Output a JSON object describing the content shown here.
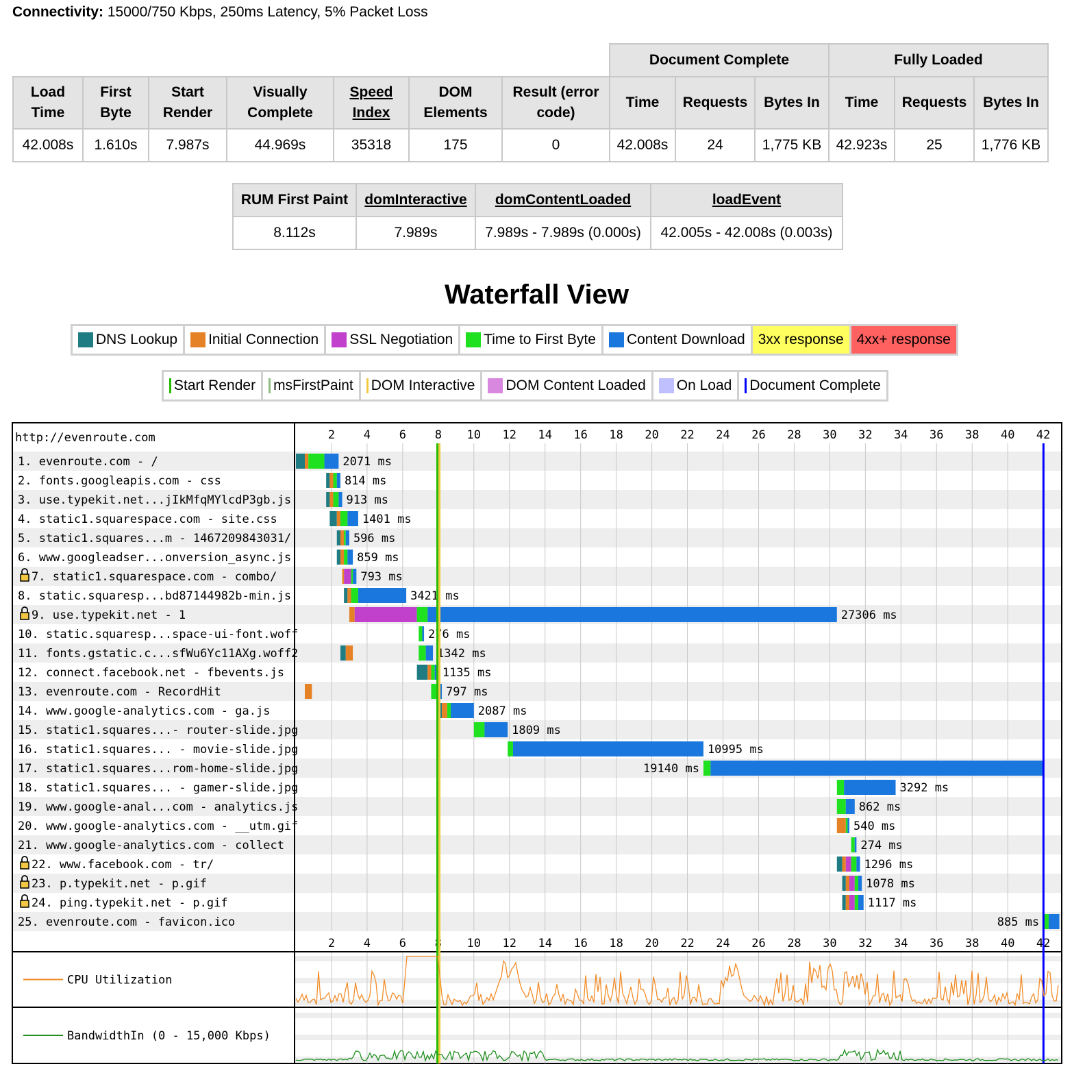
{
  "connectivity": {
    "label": "Connectivity:",
    "value": "15000/750 Kbps, 250ms Latency, 5% Packet Loss"
  },
  "results": {
    "group_headers": {
      "document_complete": "Document Complete",
      "fully_loaded": "Fully Loaded"
    },
    "headers": [
      "Load Time",
      "First Byte",
      "Start Render",
      "Visually Complete",
      "Speed Index",
      "DOM Elements",
      "Result (error code)",
      "Time",
      "Requests",
      "Bytes In",
      "Time",
      "Requests",
      "Bytes In"
    ],
    "values": [
      "42.008s",
      "1.610s",
      "7.987s",
      "44.969s",
      "35318",
      "175",
      "0",
      "42.008s",
      "24",
      "1,775 KB",
      "42.923s",
      "25",
      "1,776 KB"
    ]
  },
  "rum": {
    "headers": [
      "RUM First Paint",
      "domInteractive",
      "domContentLoaded",
      "loadEvent"
    ],
    "values": [
      "8.112s",
      "7.989s",
      "7.989s - 7.989s (0.000s)",
      "42.005s - 42.008s (0.003s)"
    ]
  },
  "waterfall_title": "Waterfall View",
  "legend_phases": [
    {
      "label": "DNS Lookup",
      "color": "#1f7c83"
    },
    {
      "label": "Initial Connection",
      "color": "#e58226"
    },
    {
      "label": "SSL Negotiation",
      "color": "#c141cd"
    },
    {
      "label": "Time to First Byte",
      "color": "#1fe11f"
    },
    {
      "label": "Content Download",
      "color": "#1977dd"
    },
    {
      "label": "3xx response",
      "color": "#ffff60"
    },
    {
      "label": "4xx+ response",
      "color": "#ff6060"
    }
  ],
  "legend_events": [
    {
      "label": "Start Render",
      "color": "#28bc00",
      "kind": "line"
    },
    {
      "label": "msFirstPaint",
      "color": "#8fbc83",
      "kind": "line"
    },
    {
      "label": "DOM Interactive",
      "color": "#f2c744",
      "kind": "line"
    },
    {
      "label": "DOM Content Loaded",
      "color": "#d888df",
      "kind": "box"
    },
    {
      "label": "On Load",
      "color": "#c0c0ff",
      "kind": "box"
    },
    {
      "label": "Document Complete",
      "color": "#0000ff",
      "kind": "line"
    }
  ],
  "waterfall": {
    "page_url": "http://evenroute.com",
    "axis_ticks": [
      2,
      4,
      6,
      8,
      10,
      12,
      14,
      16,
      18,
      20,
      22,
      24,
      26,
      28,
      30,
      32,
      34,
      36,
      38,
      40,
      42
    ],
    "markers": {
      "start_render": 7.987,
      "dom_interactive": 7.989,
      "document_complete": 42.008
    },
    "requests": [
      {
        "label": " 1. evenroute.com - /",
        "secure": false,
        "duration": "2071 ms",
        "phases": [
          [
            0.0,
            0.5,
            "dns"
          ],
          [
            0.5,
            0.7,
            "conn"
          ],
          [
            0.7,
            1.6,
            "ttfb"
          ],
          [
            1.6,
            2.4,
            "dl"
          ]
        ]
      },
      {
        "label": " 2. fonts.googleapis.com - css",
        "secure": false,
        "duration": "814 ms",
        "phases": [
          [
            1.7,
            1.9,
            "dns"
          ],
          [
            1.9,
            2.1,
            "conn"
          ],
          [
            2.1,
            2.3,
            "ttfb"
          ],
          [
            2.3,
            2.5,
            "dl"
          ]
        ]
      },
      {
        "label": " 3. use.typekit.net...jIkMfqMYlcdP3gb.js",
        "secure": false,
        "duration": "913 ms",
        "phases": [
          [
            1.7,
            1.9,
            "dns"
          ],
          [
            1.9,
            2.1,
            "conn"
          ],
          [
            2.1,
            2.4,
            "ttfb"
          ],
          [
            2.4,
            2.6,
            "dl"
          ]
        ]
      },
      {
        "label": " 4. static1.squarespace.com - site.css",
        "secure": false,
        "duration": "1401 ms",
        "phases": [
          [
            1.9,
            2.3,
            "dns"
          ],
          [
            2.3,
            2.5,
            "conn"
          ],
          [
            2.5,
            2.9,
            "ttfb"
          ],
          [
            2.9,
            3.5,
            "dl"
          ]
        ]
      },
      {
        "label": " 5. static1.squares...m - 1467209843031/",
        "secure": false,
        "duration": "596 ms",
        "phases": [
          [
            2.3,
            2.5,
            "dns"
          ],
          [
            2.5,
            2.7,
            "conn"
          ],
          [
            2.7,
            2.8,
            "ttfb"
          ],
          [
            2.8,
            3.0,
            "dl"
          ]
        ]
      },
      {
        "label": " 6. www.googleadser...onversion_async.js",
        "secure": false,
        "duration": "859 ms",
        "phases": [
          [
            2.3,
            2.5,
            "dns"
          ],
          [
            2.5,
            2.7,
            "conn"
          ],
          [
            2.7,
            2.9,
            "ttfb"
          ],
          [
            2.9,
            3.2,
            "dl"
          ]
        ]
      },
      {
        "label": " 7. static1.squarespace.com - combo/",
        "secure": true,
        "duration": "793 ms",
        "phases": [
          [
            2.6,
            2.7,
            "conn"
          ],
          [
            2.7,
            3.1,
            "ssl"
          ],
          [
            3.1,
            3.2,
            "ttfb"
          ],
          [
            3.2,
            3.4,
            "dl"
          ]
        ]
      },
      {
        "label": " 8. static.squaresp...bd87144982b-min.js",
        "secure": false,
        "duration": "3421 ms",
        "phases": [
          [
            2.7,
            2.9,
            "dns"
          ],
          [
            2.9,
            3.1,
            "conn"
          ],
          [
            3.1,
            3.5,
            "ttfb"
          ],
          [
            3.5,
            6.2,
            "dl"
          ]
        ]
      },
      {
        "label": " 9. use.typekit.net - 1",
        "secure": true,
        "duration": "27306 ms",
        "phases": [
          [
            3.0,
            3.3,
            "conn"
          ],
          [
            3.3,
            6.8,
            "ssl"
          ],
          [
            6.8,
            7.4,
            "ttfb"
          ],
          [
            7.4,
            30.4,
            "dl"
          ]
        ]
      },
      {
        "label": "10. static.squaresp...space-ui-font.woff",
        "secure": false,
        "duration": "276 ms",
        "phases": [
          [
            6.9,
            7.1,
            "ttfb"
          ],
          [
            7.1,
            7.2,
            "dl"
          ]
        ]
      },
      {
        "label": "11. fonts.gstatic.c...sfWu6Yc11AXg.woff2",
        "secure": false,
        "duration": "1342 ms",
        "phases": [
          [
            2.5,
            2.8,
            "dns"
          ],
          [
            2.8,
            3.2,
            "conn"
          ],
          [
            6.9,
            7.3,
            "ttfb"
          ],
          [
            7.3,
            7.7,
            "dl"
          ]
        ]
      },
      {
        "label": "12. connect.facebook.net - fbevents.js",
        "secure": false,
        "duration": "1135 ms",
        "phases": [
          [
            6.8,
            7.4,
            "dns"
          ],
          [
            7.4,
            7.6,
            "conn"
          ],
          [
            7.6,
            7.8,
            "ttfb"
          ],
          [
            7.8,
            8.0,
            "dl"
          ]
        ]
      },
      {
        "label": "13. evenroute.com - RecordHit",
        "secure": false,
        "duration": "797 ms",
        "phases": [
          [
            0.5,
            0.9,
            "conn"
          ],
          [
            7.6,
            8.0,
            "ttfb"
          ],
          [
            8.0,
            8.2,
            "dl"
          ]
        ]
      },
      {
        "label": "14. www.google-analytics.com - ga.js",
        "secure": false,
        "duration": "2087 ms",
        "phases": [
          [
            7.9,
            8.2,
            "dns"
          ],
          [
            8.2,
            8.5,
            "conn"
          ],
          [
            8.5,
            8.7,
            "ttfb"
          ],
          [
            8.7,
            10.0,
            "dl"
          ]
        ]
      },
      {
        "label": "15. static1.squares...- router-slide.jpg",
        "secure": false,
        "duration": "1809 ms",
        "phases": [
          [
            10.0,
            10.6,
            "ttfb"
          ],
          [
            10.6,
            11.9,
            "dl"
          ]
        ]
      },
      {
        "label": "16. static1.squares... - movie-slide.jpg",
        "secure": false,
        "duration": "10995 ms",
        "phases": [
          [
            11.9,
            12.2,
            "ttfb"
          ],
          [
            12.2,
            22.9,
            "dl"
          ]
        ]
      },
      {
        "label": "17. static1.squares...rom-home-slide.jpg",
        "secure": false,
        "duration": "19140 ms",
        "label_left": true,
        "phases": [
          [
            22.9,
            23.3,
            "ttfb"
          ],
          [
            23.3,
            42.0,
            "dl"
          ]
        ]
      },
      {
        "label": "18. static1.squares... - gamer-slide.jpg",
        "secure": false,
        "duration": "3292 ms",
        "phases": [
          [
            30.4,
            30.8,
            "ttfb"
          ],
          [
            30.8,
            33.7,
            "dl"
          ]
        ]
      },
      {
        "label": "19. www.google-anal...com - analytics.js",
        "secure": false,
        "duration": "862 ms",
        "phases": [
          [
            30.4,
            30.9,
            "ttfb"
          ],
          [
            30.9,
            31.4,
            "dl"
          ]
        ]
      },
      {
        "label": "20. www.google-analytics.com - __utm.gif",
        "secure": false,
        "duration": "540 ms",
        "phases": [
          [
            30.4,
            30.9,
            "conn"
          ],
          [
            30.9,
            31.0,
            "ttfb"
          ],
          [
            31.0,
            31.1,
            "dl"
          ]
        ]
      },
      {
        "label": "21. www.google-analytics.com - collect",
        "secure": false,
        "duration": "274 ms",
        "phases": [
          [
            31.2,
            31.4,
            "ttfb"
          ],
          [
            31.4,
            31.5,
            "dl"
          ]
        ]
      },
      {
        "label": "22. www.facebook.com - tr/",
        "secure": true,
        "duration": "1296 ms",
        "phases": [
          [
            30.4,
            30.7,
            "dns"
          ],
          [
            30.7,
            30.9,
            "conn"
          ],
          [
            30.9,
            31.2,
            "ssl"
          ],
          [
            31.2,
            31.5,
            "ttfb"
          ],
          [
            31.5,
            31.7,
            "dl"
          ]
        ]
      },
      {
        "label": "23. p.typekit.net - p.gif",
        "secure": true,
        "duration": "1078 ms",
        "phases": [
          [
            30.7,
            30.9,
            "dns"
          ],
          [
            30.9,
            31.1,
            "conn"
          ],
          [
            31.1,
            31.4,
            "ssl"
          ],
          [
            31.4,
            31.6,
            "ttfb"
          ],
          [
            31.6,
            31.8,
            "dl"
          ]
        ]
      },
      {
        "label": "24. ping.typekit.net - p.gif",
        "secure": true,
        "duration": "1117 ms",
        "phases": [
          [
            30.7,
            30.9,
            "dns"
          ],
          [
            30.9,
            31.1,
            "conn"
          ],
          [
            31.1,
            31.4,
            "ssl"
          ],
          [
            31.4,
            31.6,
            "ttfb"
          ],
          [
            31.6,
            31.9,
            "dl"
          ]
        ]
      },
      {
        "label": "25. evenroute.com - favicon.ico",
        "secure": false,
        "duration": "885 ms",
        "label_left": true,
        "phases": [
          [
            42.0,
            42.3,
            "ttfb"
          ],
          [
            42.3,
            42.9,
            "dl"
          ]
        ]
      }
    ],
    "cpu_label": "CPU Utilization",
    "bandwidth_label": "BandwidthIn (0 - 15,000 Kbps)"
  }
}
